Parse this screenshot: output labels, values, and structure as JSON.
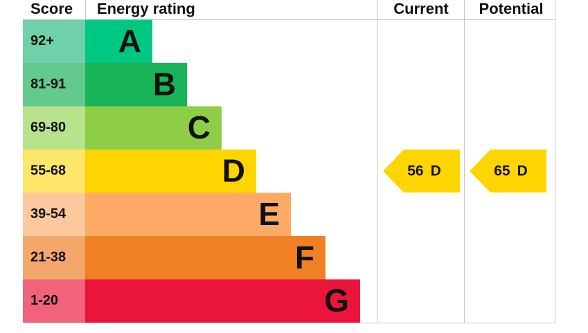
{
  "header": {
    "score": "Score",
    "rating": "Energy rating",
    "current": "Current",
    "potential": "Potential"
  },
  "bands": [
    {
      "score": "92+",
      "letter": "A",
      "color": "#00c781",
      "light": "#6fd1a9"
    },
    {
      "score": "81-91",
      "letter": "B",
      "color": "#19b459",
      "light": "#63c98c"
    },
    {
      "score": "69-80",
      "letter": "C",
      "color": "#8dce46",
      "light": "#b9e28d"
    },
    {
      "score": "55-68",
      "letter": "D",
      "color": "#ffd500",
      "light": "#fde66a"
    },
    {
      "score": "39-54",
      "letter": "E",
      "color": "#fcaa65",
      "light": "#fdc89c"
    },
    {
      "score": "21-38",
      "letter": "F",
      "color": "#ef8023",
      "light": "#f4a76a"
    },
    {
      "score": "1-20",
      "letter": "G",
      "color": "#e9153b",
      "light": "#f0637b"
    }
  ],
  "current": {
    "value": 56,
    "band": "D"
  },
  "potential": {
    "value": 65,
    "band": "D"
  }
}
